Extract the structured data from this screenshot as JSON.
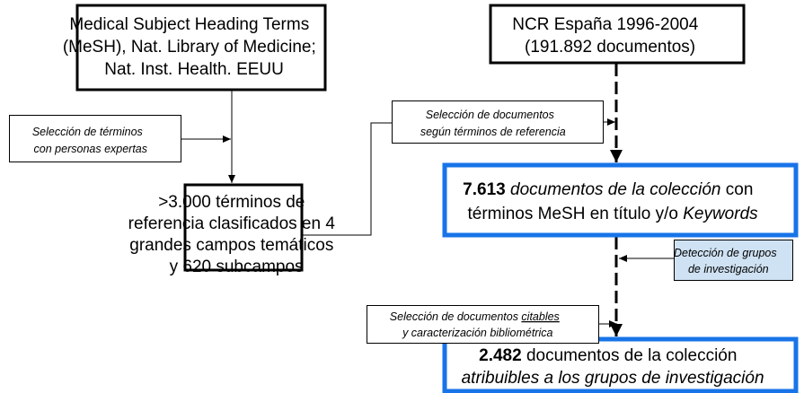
{
  "nodes": {
    "mesh": {
      "lines": [
        "Medical Subject Heading Terms",
        "(MeSH), Nat. Library of Medicine;",
        "Nat. Inst. Health. EEUU"
      ]
    },
    "ncr": {
      "lines": [
        "NCR España 1996-2004",
        "(191.892 documentos)"
      ]
    },
    "terms": {
      "lines": [
        ">3.000 términos de",
        "referencia clasificados en 4",
        "grandes campos temáticos",
        "y 620 subcampos"
      ]
    },
    "collection": {
      "lines": [
        [
          "7.613",
          " documentos de la colección",
          " con"
        ],
        [
          "términos MeSH en título y/o ",
          "Keywords"
        ]
      ]
    },
    "groups": {
      "lines": [
        [
          "2.482",
          " documentos de la colección"
        ],
        [
          "atribuibles a los grupos de investigación"
        ]
      ]
    }
  },
  "labels": {
    "experts": {
      "lines": [
        "Selección de términos",
        "con personas expertas"
      ]
    },
    "selection": {
      "lines": [
        "Selección de documentos",
        "según términos de referencia"
      ]
    },
    "detection": {
      "lines": [
        "Detección de grupos",
        "de investigación"
      ]
    },
    "citable": {
      "lines": [
        [
          "Selección de documentos ",
          "citables"
        ],
        [
          "y caracterización bibliométrica"
        ]
      ]
    }
  }
}
